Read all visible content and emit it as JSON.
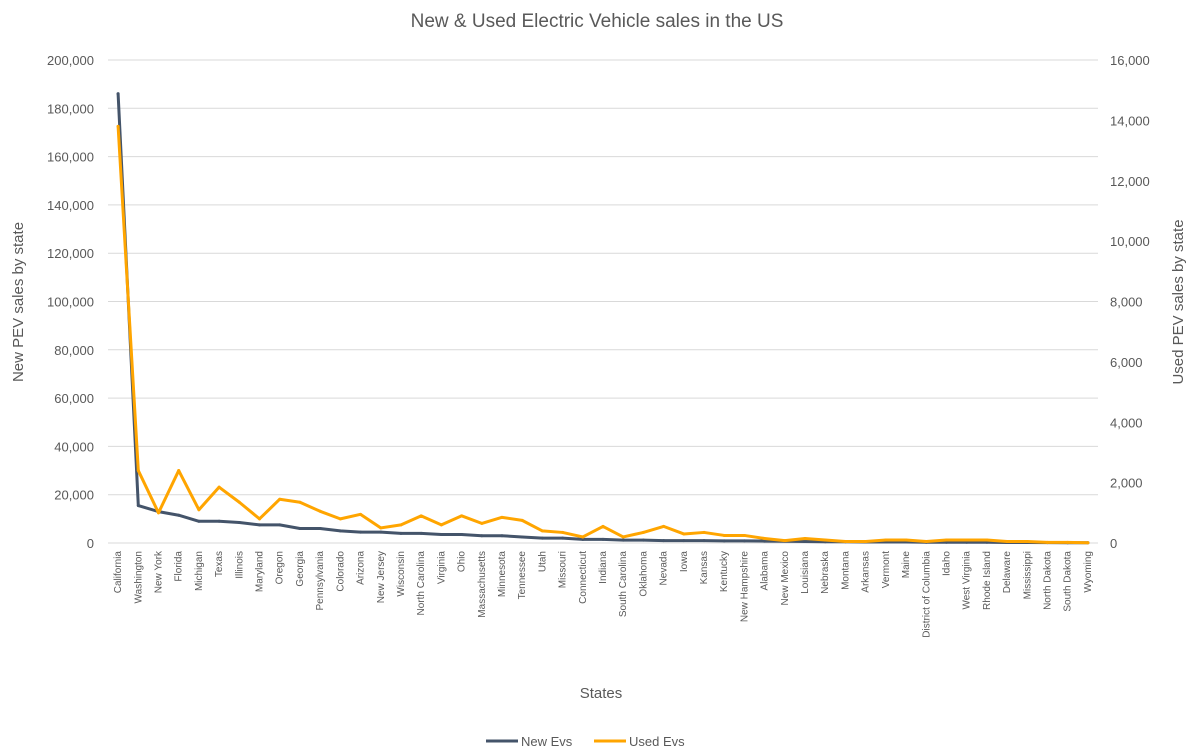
{
  "chart_data": {
    "type": "line",
    "title": "New & Used Electric Vehicle sales in the US",
    "xlabel": "States",
    "ylabel": "New PEV sales by state",
    "y2label": "Used PEV sales by state",
    "ylim": [
      0,
      200000
    ],
    "y2lim": [
      0,
      16000
    ],
    "yticks": [
      "0",
      "20,000",
      "40,000",
      "60,000",
      "80,000",
      "100,000",
      "120,000",
      "140,000",
      "160,000",
      "180,000",
      "200,000"
    ],
    "y2ticks": [
      "0",
      "2,000",
      "4,000",
      "6,000",
      "8,000",
      "10,000",
      "12,000",
      "14,000",
      "16,000"
    ],
    "grid": true,
    "legend_position": "bottom",
    "categories": [
      "California",
      "Washington",
      "New York",
      "Florida",
      "Michigan",
      "Texas",
      "Illinois",
      "Maryland",
      "Oregon",
      "Georgia",
      "Pennsylvania",
      "Colorado",
      "Arizona",
      "New Jersey",
      "Wisconsin",
      "North Carolina",
      "Virginia",
      "Ohio",
      "Massachusetts",
      "Minnesota",
      "Tennessee",
      "Utah",
      "Missouri",
      "Connecticut",
      "Indiana",
      "South Carolina",
      "Oklahoma",
      "Nevada",
      "Iowa",
      "Kansas",
      "Kentucky",
      "New Hampshire",
      "Alabama",
      "New Mexico",
      "Louisiana",
      "Nebraska",
      "Montana",
      "Arkansas",
      "Vermont",
      "Maine",
      "District of Columbia",
      "Idaho",
      "West Virginia",
      "Rhode Island",
      "Delaware",
      "Mississippi",
      "North Dakota",
      "South Dakota",
      "Wyoming"
    ],
    "series": [
      {
        "name": "New Evs",
        "axis": "left",
        "color": "#44546a",
        "values": [
          186000,
          15500,
          13000,
          11500,
          9000,
          9000,
          8500,
          7500,
          7500,
          6000,
          6000,
          5000,
          4500,
          4500,
          4000,
          4000,
          3500,
          3500,
          3000,
          3000,
          2500,
          2000,
          2000,
          1500,
          1500,
          1200,
          1200,
          1000,
          1000,
          1000,
          900,
          900,
          800,
          700,
          600,
          500,
          500,
          400,
          400,
          400,
          300,
          300,
          300,
          300,
          200,
          200,
          150,
          100,
          100
        ]
      },
      {
        "name": "Used Evs",
        "axis": "right",
        "color": "#ffa500",
        "values": [
          13800,
          2400,
          1000,
          2400,
          1100,
          1850,
          1350,
          800,
          1450,
          1350,
          1050,
          800,
          950,
          500,
          600,
          900,
          600,
          900,
          650,
          850,
          750,
          400,
          350,
          200,
          550,
          200,
          350,
          550,
          300,
          350,
          250,
          250,
          150,
          80,
          150,
          100,
          50,
          50,
          100,
          100,
          50,
          100,
          100,
          100,
          50,
          50,
          20,
          20,
          10
        ]
      }
    ]
  }
}
